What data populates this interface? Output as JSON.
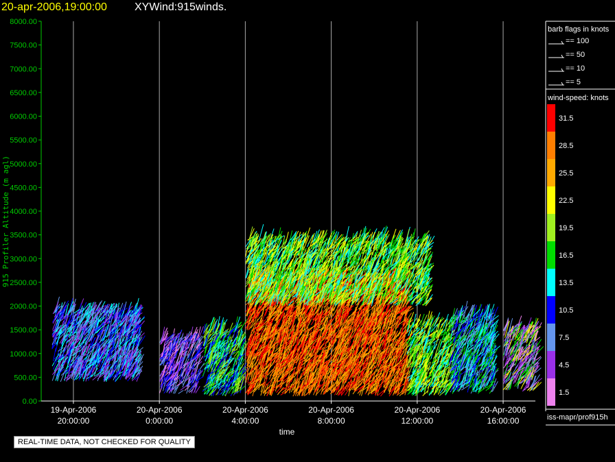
{
  "title": {
    "datetime": "20-apr-2006,19:00:00",
    "name": "XYWind:915winds."
  },
  "footer_note": "REAL-TIME DATA, NOT CHECKED FOR QUALITY",
  "source_label": "iss-mapr/prof915h",
  "colors": {
    "axis_y": "#00cc00",
    "axis_x": "#ffffff",
    "title_date": "#ffff00"
  },
  "barb_legend": {
    "title": "barb flags in knots",
    "items": [
      "== 100",
      "== 50",
      "== 10",
      "== 5"
    ]
  },
  "speed_legend": {
    "title": "wind-speed: knots",
    "bins": [
      {
        "label": "31.5",
        "color": "#ff0000"
      },
      {
        "label": "28.5",
        "color": "#ff7f00"
      },
      {
        "label": "25.5",
        "color": "#ffaa00"
      },
      {
        "label": "22.5",
        "color": "#ffff00"
      },
      {
        "label": "19.5",
        "color": "#a0f020"
      },
      {
        "label": "16.5",
        "color": "#00dd00"
      },
      {
        "label": "13.5",
        "color": "#00ffff"
      },
      {
        "label": "10.5",
        "color": "#0000ff"
      },
      {
        "label": "7.5",
        "color": "#6495ed"
      },
      {
        "label": "4.5",
        "color": "#9a30e8"
      },
      {
        "label": "1.5",
        "color": "#ee82ee"
      }
    ]
  },
  "chart_data": {
    "type": "scatter",
    "xlabel": "time",
    "ylabel": "915 Profiler Altitude (m agl)",
    "ylim": [
      0,
      8000
    ],
    "xlim_hours": [
      -1.5,
      21.5
    ],
    "y_ticks": [
      "0.00",
      "500.00",
      "1000.00",
      "1500.00",
      "2000.00",
      "2500.00",
      "3000.00",
      "3500.00",
      "4000.00",
      "4500.00",
      "5000.00",
      "5500.00",
      "6000.00",
      "6500.00",
      "7000.00",
      "7500.00",
      "8000.00"
    ],
    "x_ticks": [
      {
        "hour": 0,
        "date": "19-Apr-2006",
        "time": "20:00:00"
      },
      {
        "hour": 4,
        "date": "20-Apr-2006",
        "time": "0:00:00"
      },
      {
        "hour": 8,
        "date": "20-Apr-2006",
        "time": "4:00:00"
      },
      {
        "hour": 12,
        "date": "20-Apr-2006",
        "time": "8:00:00"
      },
      {
        "hour": 16,
        "date": "20-Apr-2006",
        "time": "12:00:00"
      },
      {
        "hour": 20,
        "date": "20-Apr-2006",
        "time": "16:00:00"
      }
    ],
    "grid": "vertical",
    "series": [
      {
        "t_start": -1,
        "t_end": 3,
        "alt_min": 400,
        "alt_max": 1900,
        "speeds": [
          7.5,
          10.5,
          13.5,
          4.5
        ]
      },
      {
        "t_start": 4,
        "t_end": 5.8,
        "alt_min": 150,
        "alt_max": 1300,
        "speeds": [
          4.5,
          7.5,
          1.5,
          10.5
        ]
      },
      {
        "t_start": 6,
        "t_end": 7.8,
        "alt_min": 100,
        "alt_max": 1500,
        "speeds": [
          13.5,
          16.5,
          10.5,
          19.5
        ]
      },
      {
        "t_start": 8,
        "t_end": 15.5,
        "alt_min": 100,
        "alt_max": 2600,
        "speeds": [
          31.5,
          28.5,
          25.5
        ]
      },
      {
        "t_start": 8,
        "t_end": 16.5,
        "alt_min": 2000,
        "alt_max": 3400,
        "speeds": [
          19.5,
          16.5,
          13.5,
          22.5
        ]
      },
      {
        "t_start": 15.5,
        "t_end": 17.5,
        "alt_min": 100,
        "alt_max": 1600,
        "speeds": [
          22.5,
          19.5,
          16.5,
          13.5
        ]
      },
      {
        "t_start": 17.5,
        "t_end": 19.5,
        "alt_min": 150,
        "alt_max": 1800,
        "speeds": [
          13.5,
          16.5,
          10.5,
          7.5
        ]
      },
      {
        "t_start": 20,
        "t_end": 21.5,
        "alt_min": 200,
        "alt_max": 1500,
        "speeds": [
          4.5,
          7.5,
          1.5,
          22.5,
          16.5
        ]
      }
    ]
  }
}
